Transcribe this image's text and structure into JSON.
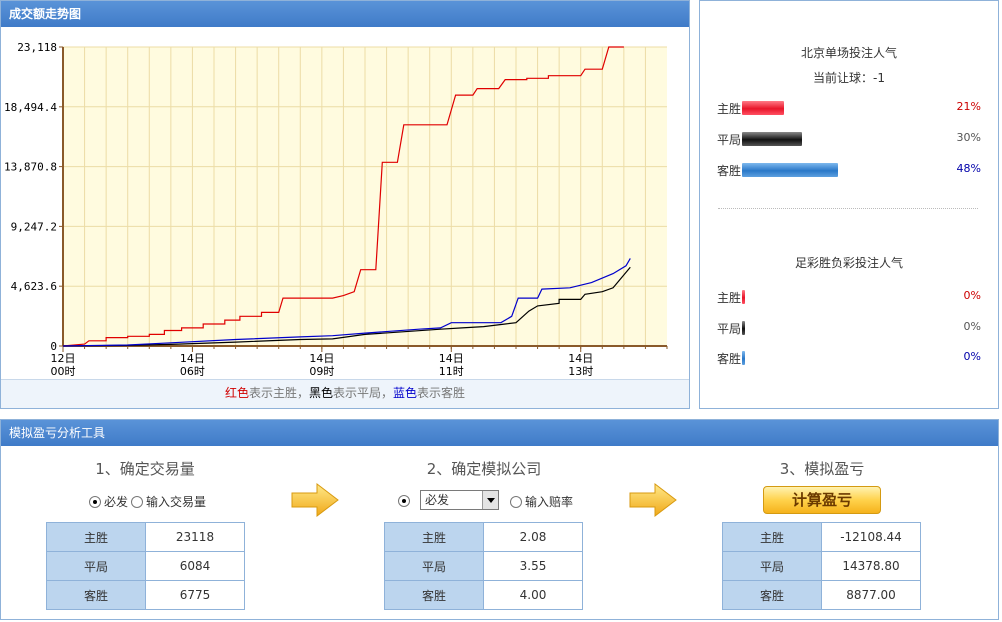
{
  "chart_panel": {
    "title": "成交额走势图",
    "legend": {
      "red": "红色",
      "red_text": "表示主胜，",
      "black": "黑色",
      "black_text": "表示平局，",
      "blue": "蓝色",
      "blue_text": "表示客胜"
    }
  },
  "chart_data": {
    "type": "line",
    "y_ticks": [
      "23,118",
      "18,494.4",
      "13,870.8",
      "9,247.2",
      "4,623.6",
      "0"
    ],
    "ylim": [
      0,
      23118
    ],
    "xlim": [
      0,
      28
    ],
    "x_ticks": [
      {
        "x": 0,
        "line1": "12日",
        "line2": "00时"
      },
      {
        "x": 6,
        "line1": "14日",
        "line2": "06时"
      },
      {
        "x": 12,
        "line1": "14日",
        "line2": "09时"
      },
      {
        "x": 18,
        "line1": "14日",
        "line2": "11时"
      },
      {
        "x": 24,
        "line1": "14日",
        "line2": "13时"
      }
    ],
    "colors": {
      "home": "#e00000",
      "draw": "#000000",
      "away": "#0000cc"
    },
    "series": [
      {
        "key": "home",
        "points": [
          [
            0,
            0
          ],
          [
            1,
            150
          ],
          [
            1.2,
            400
          ],
          [
            2,
            400
          ],
          [
            2,
            650
          ],
          [
            3,
            650
          ],
          [
            3,
            750
          ],
          [
            4,
            750
          ],
          [
            4,
            900
          ],
          [
            4.7,
            900
          ],
          [
            4.7,
            1200
          ],
          [
            5.5,
            1200
          ],
          [
            5.5,
            1400
          ],
          [
            6.5,
            1400
          ],
          [
            6.5,
            1700
          ],
          [
            7.5,
            1700
          ],
          [
            7.5,
            2000
          ],
          [
            8.2,
            2000
          ],
          [
            8.2,
            2300
          ],
          [
            9.2,
            2300
          ],
          [
            9.2,
            2600
          ],
          [
            10,
            2600
          ],
          [
            10.2,
            3700
          ],
          [
            12.5,
            3700
          ],
          [
            13,
            3900
          ],
          [
            13.5,
            4200
          ],
          [
            13.8,
            5900
          ],
          [
            14.5,
            5900
          ],
          [
            14.8,
            14200
          ],
          [
            15.5,
            14200
          ],
          [
            15.8,
            17100
          ],
          [
            17.8,
            17100
          ],
          [
            18.2,
            19400
          ],
          [
            19,
            19400
          ],
          [
            19.2,
            19900
          ],
          [
            20.2,
            19900
          ],
          [
            20.5,
            20600
          ],
          [
            21.5,
            20600
          ],
          [
            21.5,
            20700
          ],
          [
            22.5,
            20700
          ],
          [
            22.5,
            20900
          ],
          [
            24,
            20900
          ],
          [
            24.2,
            21400
          ],
          [
            25,
            21400
          ],
          [
            25.3,
            23118
          ],
          [
            26,
            23118
          ]
        ]
      },
      {
        "key": "draw",
        "points": [
          [
            0,
            0
          ],
          [
            3,
            50
          ],
          [
            5,
            120
          ],
          [
            8,
            300
          ],
          [
            11,
            500
          ],
          [
            12.5,
            550
          ],
          [
            14,
            900
          ],
          [
            17.5,
            1300
          ],
          [
            18.5,
            1400
          ],
          [
            19.5,
            1500
          ],
          [
            20.5,
            1700
          ],
          [
            21,
            1800
          ],
          [
            21.6,
            2700
          ],
          [
            22,
            3100
          ],
          [
            23,
            3300
          ],
          [
            23,
            3600
          ],
          [
            24,
            3600
          ],
          [
            24.2,
            4000
          ],
          [
            25,
            4200
          ],
          [
            25.5,
            4500
          ],
          [
            26.3,
            6084
          ]
        ]
      },
      {
        "key": "away",
        "points": [
          [
            0,
            0
          ],
          [
            3,
            80
          ],
          [
            5,
            250
          ],
          [
            8,
            500
          ],
          [
            11,
            700
          ],
          [
            12.5,
            800
          ],
          [
            14,
            1000
          ],
          [
            16.5,
            1300
          ],
          [
            17.5,
            1400
          ],
          [
            18,
            1800
          ],
          [
            20.3,
            1800
          ],
          [
            20.8,
            2300
          ],
          [
            21.1,
            3700
          ],
          [
            22,
            3700
          ],
          [
            22.2,
            4400
          ],
          [
            23.5,
            4500
          ],
          [
            24.5,
            4900
          ],
          [
            25.5,
            5600
          ],
          [
            26.1,
            6200
          ],
          [
            26.3,
            6775
          ]
        ]
      }
    ]
  },
  "bjdc": {
    "title": "北京单场投注人气",
    "handicap": "当前让球：-1",
    "rows": [
      {
        "label": "主胜",
        "pct": "21%",
        "value": 21
      },
      {
        "label": "平局",
        "pct": "30%",
        "value": 30
      },
      {
        "label": "客胜",
        "pct": "48%",
        "value": 48
      }
    ]
  },
  "zc": {
    "title": "足彩胜负彩投注人气",
    "rows": [
      {
        "label": "主胜",
        "pct": "0%",
        "value": 0
      },
      {
        "label": "平局",
        "pct": "0%",
        "value": 0
      },
      {
        "label": "客胜",
        "pct": "0%",
        "value": 0
      }
    ]
  },
  "tool": {
    "title": "模拟盈亏分析工具",
    "step1": {
      "title": "1、确定交易量",
      "opt_bifa": "必发",
      "opt_input": "输入交易量",
      "rows": [
        {
          "label": "主胜",
          "value": "23118"
        },
        {
          "label": "平局",
          "value": "6084"
        },
        {
          "label": "客胜",
          "value": "6775"
        }
      ]
    },
    "step2": {
      "title": "2、确定模拟公司",
      "select_value": "必发",
      "opt_input": "输入赔率",
      "rows": [
        {
          "label": "主胜",
          "value": "2.08"
        },
        {
          "label": "平局",
          "value": "3.55"
        },
        {
          "label": "客胜",
          "value": "4.00"
        }
      ]
    },
    "step3": {
      "title": "3、模拟盈亏",
      "button": "计算盈亏",
      "rows": [
        {
          "label": "主胜",
          "value": "-12108.44"
        },
        {
          "label": "平局",
          "value": "14378.80"
        },
        {
          "label": "客胜",
          "value": "8877.00"
        }
      ]
    }
  }
}
